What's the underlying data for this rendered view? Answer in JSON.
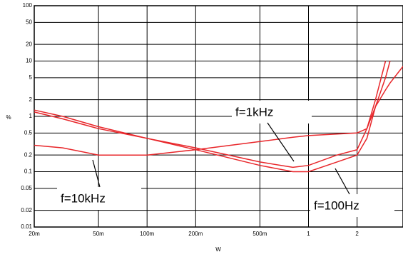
{
  "chart_data": {
    "type": "line",
    "y_label": "%",
    "x_label": "W",
    "x": [
      0.02,
      0.03,
      0.05,
      0.1,
      0.2,
      0.5,
      0.8,
      1,
      1.5,
      2,
      2.3,
      2.6,
      3,
      3.2,
      3.85
    ],
    "series": [
      {
        "name": "f=100Hz",
        "color": "#e8262a",
        "values": [
          1.3,
          1.0,
          0.65,
          0.4,
          0.25,
          0.13,
          0.1,
          0.1,
          0.15,
          0.2,
          0.4,
          1.5,
          5,
          10,
          null
        ]
      },
      {
        "name": "f=1kHz",
        "color": "#e8262a",
        "values": [
          1.2,
          0.9,
          0.6,
          0.4,
          0.27,
          0.15,
          0.12,
          0.13,
          0.2,
          0.25,
          0.6,
          1.5,
          3,
          4,
          8
        ]
      },
      {
        "name": "f=10kHz",
        "color": "#e8262a",
        "values": [
          0.3,
          0.27,
          0.2,
          0.2,
          0.25,
          0.35,
          0.42,
          0.45,
          0.48,
          0.5,
          0.6,
          2,
          10,
          null,
          null
        ]
      }
    ],
    "xlog": true,
    "ylog": true,
    "xlim": [
      0.02,
      3.85
    ],
    "ylim": [
      0.01,
      100
    ],
    "xticks": [
      {
        "value": 0.02,
        "label": "20m"
      },
      {
        "value": 0.05,
        "label": "50m"
      },
      {
        "value": 0.1,
        "label": "100m"
      },
      {
        "value": 0.2,
        "label": "200m"
      },
      {
        "value": 0.5,
        "label": "500m"
      },
      1,
      2
    ],
    "yticks": [
      100,
      50,
      20,
      10,
      5,
      2,
      1,
      0.5,
      0.2,
      0.1,
      0.05,
      0.02,
      0.01
    ],
    "grid": true
  }
}
